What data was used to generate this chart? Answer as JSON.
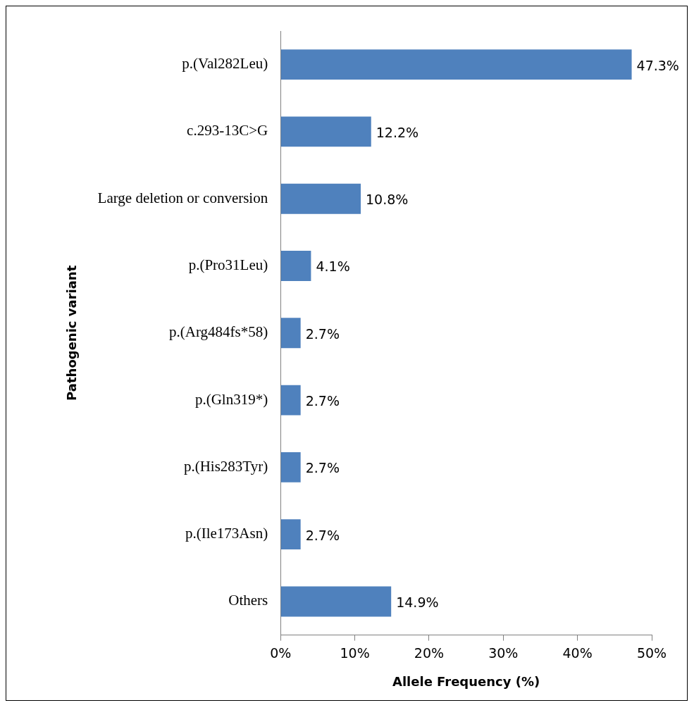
{
  "chart_data": {
    "type": "bar",
    "orientation": "horizontal",
    "xlabel": "Allele Frequency (%)",
    "ylabel": "Pathogenic variant",
    "categories": [
      "p.(Val282Leu)",
      "c.293-13C>G",
      "Large deletion or conversion",
      "p.(Pro31Leu)",
      "p.(Arg484fs*58)",
      "p.(Gln319*)",
      "p.(His283Tyr)",
      "p.(Ile173Asn)",
      "Others"
    ],
    "values": [
      47.3,
      12.2,
      10.8,
      4.1,
      2.7,
      2.7,
      2.7,
      2.7,
      14.9
    ],
    "value_labels": [
      "47.3%",
      "12.2%",
      "10.8%",
      "4.1%",
      "2.7%",
      "2.7%",
      "2.7%",
      "2.7%",
      "14.9%"
    ],
    "color": "#4f81bd",
    "xlim": [
      0,
      50
    ],
    "xticks": [
      {
        "value": 0,
        "label": "0%"
      },
      {
        "value": 10,
        "label": "10%"
      },
      {
        "value": 20,
        "label": "20%"
      },
      {
        "value": 30,
        "label": "30%"
      },
      {
        "value": 40,
        "label": "40%"
      },
      {
        "value": 50,
        "label": "50%"
      }
    ],
    "legend": false
  }
}
